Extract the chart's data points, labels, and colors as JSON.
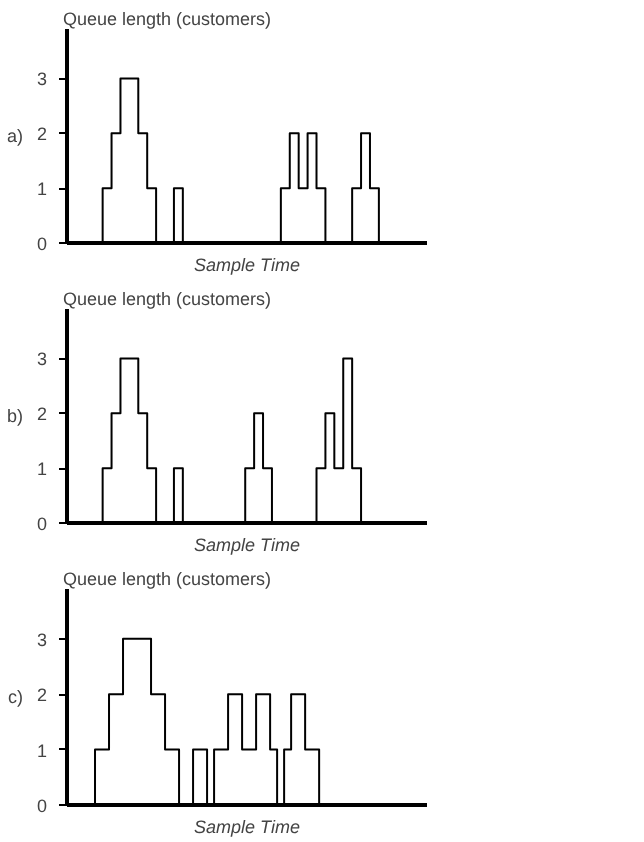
{
  "chart_data": [
    {
      "type": "step",
      "ylabel": "Queue length (customers)",
      "xlabel": "Sample Time",
      "annotations": [
        "a)"
      ],
      "color": "#000000",
      "ylim": [
        0,
        3.9
      ],
      "yticks": [
        0,
        1,
        2,
        3
      ],
      "tick_labels": "y",
      "categories": [
        null,
        null,
        null,
        null,
        null,
        null,
        null,
        null,
        null,
        null,
        null,
        null,
        null,
        null,
        null,
        null,
        null,
        null,
        null,
        null,
        null,
        null,
        null,
        null,
        null,
        null,
        null,
        null,
        null,
        null,
        null,
        null,
        null,
        null,
        null,
        null,
        null,
        null,
        null,
        null
      ],
      "values": [
        0,
        0,
        0,
        0,
        1,
        2,
        3,
        3,
        2,
        1,
        0,
        0,
        1,
        0,
        0,
        0,
        0,
        0,
        0,
        0,
        0,
        0,
        0,
        0,
        1,
        2,
        1,
        2,
        1,
        0,
        0,
        0,
        1,
        2,
        1,
        0,
        0,
        0,
        0,
        0
      ]
    },
    {
      "type": "step",
      "ylabel": "Queue length (customers)",
      "xlabel": "Sample Time",
      "annotations": [
        "b)"
      ],
      "color": "#000000",
      "ylim": [
        0,
        3.9
      ],
      "yticks": [
        0,
        1,
        2,
        3
      ],
      "tick_labels": "y",
      "categories": [
        null,
        null,
        null,
        null,
        null,
        null,
        null,
        null,
        null,
        null,
        null,
        null,
        null,
        null,
        null,
        null,
        null,
        null,
        null,
        null,
        null,
        null,
        null,
        null,
        null,
        null,
        null,
        null,
        null,
        null,
        null,
        null,
        null,
        null,
        null,
        null,
        null,
        null,
        null,
        null
      ],
      "values": [
        0,
        0,
        0,
        0,
        1,
        2,
        3,
        3,
        2,
        1,
        0,
        0,
        1,
        0,
        0,
        0,
        0,
        0,
        0,
        0,
        1,
        2,
        1,
        0,
        0,
        0,
        0,
        0,
        1,
        2,
        1,
        3,
        1,
        0,
        0,
        0,
        0,
        0,
        0,
        0
      ]
    },
    {
      "type": "step",
      "ylabel": "Queue length (customers)",
      "xlabel": "Sample Time",
      "annotations": [
        "c)"
      ],
      "color": "#000000",
      "ylim": [
        0,
        3.9
      ],
      "yticks": [
        0,
        1,
        2,
        3
      ],
      "tick_labels": "y",
      "categories": [
        null,
        null,
        null,
        null,
        null,
        null,
        null,
        null,
        null,
        null,
        null,
        null,
        null,
        null,
        null,
        null,
        null,
        null,
        null,
        null,
        null,
        null,
        null,
        null,
        null,
        null,
        null,
        null,
        null,
        null,
        null,
        null,
        null,
        null,
        null,
        null,
        null,
        null,
        null,
        null,
        null,
        null,
        null,
        null,
        null,
        null,
        null,
        null,
        null,
        null,
        null
      ],
      "values": [
        0,
        0,
        0,
        0,
        1,
        1,
        2,
        2,
        3,
        3,
        3,
        3,
        2,
        2,
        1,
        1,
        0,
        0,
        1,
        1,
        0,
        1,
        1,
        2,
        2,
        1,
        1,
        2,
        2,
        1,
        0,
        1,
        2,
        2,
        1,
        1,
        0,
        0,
        0,
        0,
        0,
        0,
        0,
        0,
        0,
        0,
        0,
        0,
        0,
        0,
        0
      ]
    }
  ]
}
